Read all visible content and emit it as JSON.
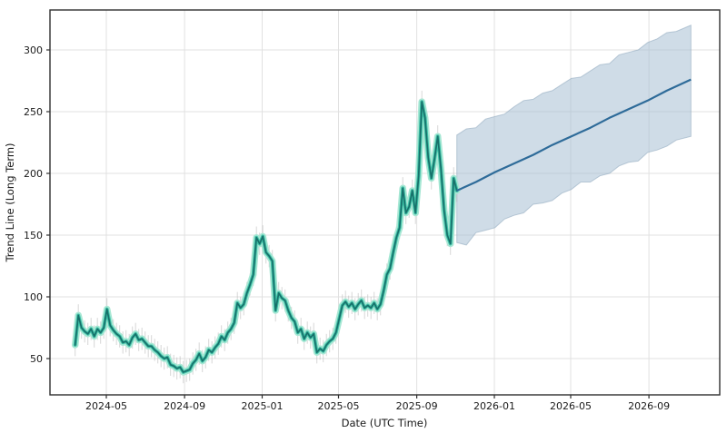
{
  "chart_data": {
    "type": "line",
    "title": "",
    "xlabel": "Date (UTC Time)",
    "ylabel": "Trend Line (Long Term)",
    "grid": true,
    "legend": "none",
    "background": "#ffffff",
    "xlim": [
      "2024-02-02",
      "2026-12-21"
    ],
    "ylim": [
      20,
      333
    ],
    "x_tick_labels": [
      "2024-05",
      "2024-09",
      "2025-01",
      "2025-05",
      "2025-09",
      "2026-01",
      "2026-05",
      "2026-09"
    ],
    "x_tick_dates": [
      "2024-05-01",
      "2024-09-01",
      "2025-01-01",
      "2025-05-01",
      "2025-09-01",
      "2026-01-01",
      "2026-05-01",
      "2026-09-01"
    ],
    "y_ticks": [
      50,
      100,
      150,
      200,
      250,
      300
    ],
    "series": [
      {
        "name": "historical-trend",
        "type": "line-with-glow-and-whiskers",
        "color": "#17706a",
        "glow_mid": "#3ec0a6",
        "glow_outer": "#a7e7d4",
        "whisker_color": "#b0b0b0",
        "whisker_halfwidth": 9,
        "start_date": "2024-03-13",
        "step_days": 5,
        "values": [
          61,
          85,
          75,
          72,
          70,
          74,
          68,
          74,
          71,
          75,
          90,
          77,
          73,
          70,
          68,
          63,
          64,
          61,
          67,
          70,
          65,
          66,
          63,
          60,
          60,
          57,
          55,
          52,
          50,
          51,
          45,
          44,
          42,
          43,
          39,
          40,
          41,
          46,
          49,
          54,
          48,
          51,
          57,
          55,
          59,
          62,
          68,
          65,
          71,
          74,
          79,
          95,
          91,
          94,
          103,
          110,
          118,
          148,
          143,
          149,
          136,
          133,
          129,
          89,
          103,
          99,
          97,
          89,
          83,
          80,
          71,
          74,
          66,
          71,
          67,
          70,
          55,
          58,
          56,
          61,
          64,
          66,
          71,
          82,
          93,
          96,
          92,
          95,
          90,
          94,
          97,
          91,
          93,
          91,
          95,
          90,
          94,
          105,
          118,
          123,
          136,
          148,
          156,
          188,
          168,
          173,
          186,
          168,
          198,
          258,
          245,
          213,
          196,
          212,
          230,
          204,
          170,
          150,
          143,
          196,
          186
        ]
      },
      {
        "name": "forecast-trend",
        "type": "line",
        "color": "#2e6b99",
        "dates": [
          "2025-11-03",
          "2025-12-03",
          "2026-01-02",
          "2026-02-01",
          "2026-03-03",
          "2026-04-02",
          "2026-05-02",
          "2026-06-01",
          "2026-07-01",
          "2026-07-31",
          "2026-08-30",
          "2026-09-29",
          "2026-11-06"
        ],
        "values": [
          186,
          193,
          201,
          208,
          215,
          223,
          230,
          237,
          245,
          252,
          259,
          267,
          276
        ]
      },
      {
        "name": "forecast-confidence-band",
        "type": "band",
        "fill": "#a8c0d4",
        "fill_opacity": 0.55,
        "edge_color": "#8ca5bc",
        "dates": [
          "2025-11-03",
          "2025-11-18",
          "2025-12-03",
          "2025-12-18",
          "2026-01-02",
          "2026-01-17",
          "2026-02-01",
          "2026-02-16",
          "2026-03-03",
          "2026-03-18",
          "2026-04-02",
          "2026-04-17",
          "2026-05-02",
          "2026-05-17",
          "2026-06-01",
          "2026-06-16",
          "2026-07-01",
          "2026-07-16",
          "2026-07-31",
          "2026-08-15",
          "2026-08-30",
          "2026-09-14",
          "2026-09-29",
          "2026-10-14",
          "2026-11-06"
        ],
        "upper": [
          231,
          236,
          237,
          244,
          246,
          248,
          254,
          259,
          260,
          265,
          267,
          272,
          277,
          278,
          283,
          288,
          289,
          296,
          298,
          300,
          306,
          309,
          314,
          315,
          320
        ],
        "lower": [
          144,
          142,
          152,
          154,
          156,
          163,
          166,
          168,
          175,
          176,
          178,
          184,
          187,
          193,
          193,
          198,
          200,
          206,
          209,
          210,
          217,
          219,
          222,
          227,
          230
        ]
      }
    ]
  }
}
